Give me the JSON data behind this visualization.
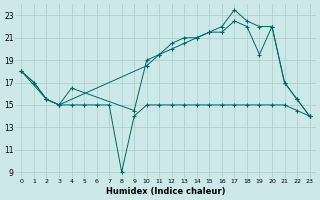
{
  "title": "",
  "xlabel": "Humidex (Indice chaleur)",
  "ylabel": "",
  "background_color": "#cce8e8",
  "grid_color": "#aacccc",
  "line_color": "#006666",
  "xlim": [
    -0.5,
    23.5
  ],
  "ylim": [
    8.5,
    24.0
  ],
  "xticks": [
    0,
    1,
    2,
    3,
    4,
    5,
    6,
    7,
    8,
    9,
    10,
    11,
    12,
    13,
    14,
    15,
    16,
    17,
    18,
    19,
    20,
    21,
    22,
    23
  ],
  "yticks": [
    9,
    11,
    13,
    15,
    17,
    19,
    21,
    23
  ],
  "line1_x": [
    0,
    1,
    2,
    3,
    4,
    5,
    6,
    7,
    8,
    9,
    10,
    11,
    12,
    13,
    14,
    15,
    16,
    17,
    18,
    19,
    20,
    21,
    22,
    23
  ],
  "line1_y": [
    18.0,
    17.0,
    15.5,
    15.0,
    15.0,
    15.0,
    15.0,
    15.0,
    9.0,
    14.0,
    15.0,
    15.0,
    15.0,
    15.0,
    15.0,
    15.0,
    15.0,
    15.0,
    15.0,
    15.0,
    15.0,
    15.0,
    14.5,
    14.0
  ],
  "line2_x": [
    0,
    2,
    3,
    10,
    11,
    12,
    13,
    14,
    15,
    16,
    17,
    18,
    19,
    20,
    21,
    22,
    23
  ],
  "line2_y": [
    18.0,
    15.5,
    15.0,
    18.5,
    19.5,
    20.0,
    20.5,
    21.0,
    21.5,
    21.5,
    22.5,
    22.0,
    19.5,
    22.0,
    17.0,
    15.5,
    14.0
  ],
  "line3_x": [
    0,
    1,
    2,
    3,
    4,
    9,
    10,
    11,
    12,
    13,
    14,
    15,
    16,
    17,
    18,
    19,
    20,
    21,
    22,
    23
  ],
  "line3_y": [
    18.0,
    17.0,
    15.5,
    15.0,
    16.5,
    14.5,
    19.0,
    19.5,
    20.5,
    21.0,
    21.0,
    21.5,
    22.0,
    23.5,
    22.5,
    22.0,
    22.0,
    17.0,
    15.5,
    14.0
  ]
}
